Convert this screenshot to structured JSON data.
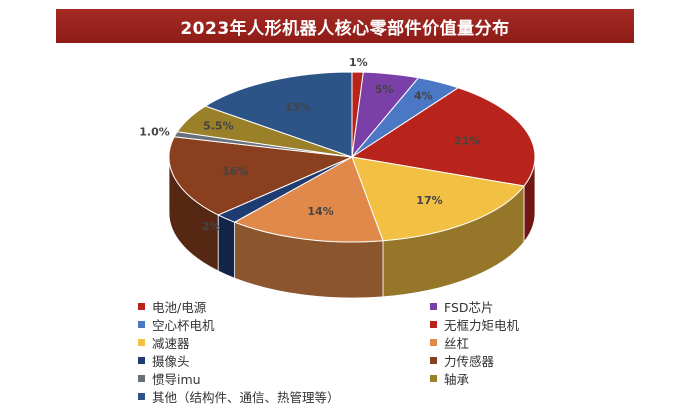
{
  "chart_data": {
    "type": "pie",
    "title": "2023年人形机器人核心零部件价值量分布",
    "slices": [
      {
        "label": "电池/电源",
        "value": 1,
        "display": "1%",
        "color": "#b8241c"
      },
      {
        "label": "FSD芯片",
        "value": 5,
        "display": "5%",
        "color": "#7b3fa8"
      },
      {
        "label": "空心杯电机",
        "value": 4,
        "display": "4%",
        "color": "#4a78c4"
      },
      {
        "label": "无框力矩电机",
        "value": 21,
        "display": "21%",
        "color": "#b8241c"
      },
      {
        "label": "减速器",
        "value": 17,
        "display": "17%",
        "color": "#f2c043"
      },
      {
        "label": "丝杠",
        "value": 14,
        "display": "14%",
        "color": "#e0894a"
      },
      {
        "label": "摄像头",
        "value": 2,
        "display": "2%",
        "color": "#1f3c72"
      },
      {
        "label": "力传感器",
        "value": 16,
        "display": "16%",
        "color": "#8a3f1e"
      },
      {
        "label": "惯导imu",
        "value": 1,
        "display": "1.0%",
        "color": "#6a6f7c"
      },
      {
        "label": "轴承",
        "value": 5.5,
        "display": "5.5%",
        "color": "#9a8028"
      },
      {
        "label": "其他（结构件、通信、热管理等）",
        "value": 15,
        "display": "15%",
        "color": "#2c5487"
      }
    ],
    "legend_position": "bottom"
  }
}
